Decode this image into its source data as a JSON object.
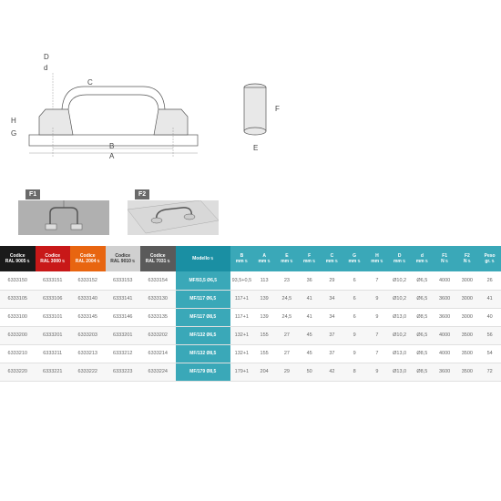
{
  "diagram": {
    "dim_labels": {
      "D": "D",
      "d": "d",
      "C": "C",
      "H": "H",
      "G": "G",
      "B": "B",
      "A": "A",
      "F": "F",
      "E": "E"
    },
    "f1": "F1",
    "f2": "F2"
  },
  "headers": [
    {
      "label": "Codice\nRAL 9005",
      "cls": "black"
    },
    {
      "label": "Codice\nRAL 3000",
      "cls": "red"
    },
    {
      "label": "Codice\nRAL 2004",
      "cls": "orange"
    },
    {
      "label": "Codice\nRAL 9010",
      "cls": "lgray"
    },
    {
      "label": "Codice\nRAL 7031",
      "cls": "dgray"
    },
    {
      "label": "Modello",
      "cls": "blue"
    },
    {
      "label": "B\nmm",
      "cls": "teal"
    },
    {
      "label": "A\nmm",
      "cls": "teal"
    },
    {
      "label": "E\nmm",
      "cls": "teal"
    },
    {
      "label": "F\nmm",
      "cls": "teal"
    },
    {
      "label": "C\nmm",
      "cls": "teal"
    },
    {
      "label": "G\nmm",
      "cls": "teal"
    },
    {
      "label": "H\nmm",
      "cls": "teal"
    },
    {
      "label": "D\nmm",
      "cls": "teal"
    },
    {
      "label": "d\nmm",
      "cls": "teal"
    },
    {
      "label": "F1\nN",
      "cls": "teal"
    },
    {
      "label": "F2\nN",
      "cls": "teal"
    },
    {
      "label": "Peso\ngr.",
      "cls": "teal"
    }
  ],
  "rows": [
    [
      "6333150",
      "6333151",
      "6333152",
      "6333153",
      "6333154",
      "MF/93,5 Ø6,5",
      "93,5+0,5",
      "113",
      "23",
      "36",
      "29",
      "6",
      "7",
      "Ø10,2",
      "Ø6,5",
      "4000",
      "3000",
      "26"
    ],
    [
      "6333105",
      "6333106",
      "6333140",
      "6333141",
      "6333130",
      "MF/117 Ø6,5",
      "117+1",
      "139",
      "24,5",
      "41",
      "34",
      "6",
      "9",
      "Ø10,2",
      "Ø6,5",
      "3600",
      "3000",
      "41"
    ],
    [
      "6333100",
      "6333101",
      "6333145",
      "6333146",
      "6333135",
      "MF/117 Ø8,5",
      "117+1",
      "139",
      "24,5",
      "41",
      "34",
      "6",
      "9",
      "Ø13,0",
      "Ø8,5",
      "3600",
      "3000",
      "40"
    ],
    [
      "6333200",
      "6333201",
      "6333203",
      "6333201",
      "6333202",
      "MF/132 Ø6,5",
      "132+1",
      "155",
      "27",
      "45",
      "37",
      "9",
      "7",
      "Ø10,2",
      "Ø6,5",
      "4000",
      "3500",
      "56"
    ],
    [
      "6333210",
      "6333211",
      "6333213",
      "6333212",
      "6333214",
      "MF/132 Ø8,5",
      "132+1",
      "155",
      "27",
      "45",
      "37",
      "9",
      "7",
      "Ø13,0",
      "Ø8,5",
      "4000",
      "3500",
      "54"
    ],
    [
      "6333220",
      "6333221",
      "6333222",
      "6333223",
      "6333224",
      "MF/179 Ø8,5",
      "179+1",
      "204",
      "29",
      "50",
      "42",
      "8",
      "9",
      "Ø13,0",
      "Ø8,5",
      "3600",
      "3500",
      "72"
    ]
  ]
}
